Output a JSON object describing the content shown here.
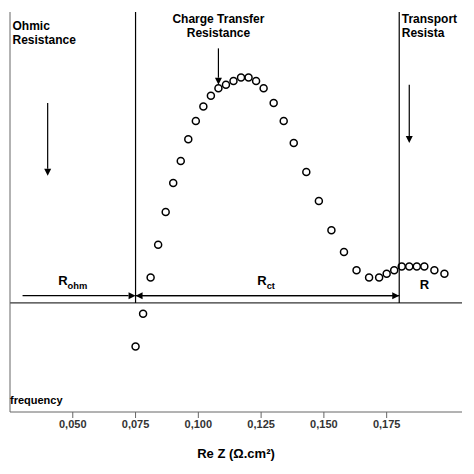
{
  "chart_data": {
    "type": "scatter",
    "xlabel": "Re Z (Ω.cm²)",
    "x": [
      0.075,
      0.078,
      0.081,
      0.084,
      0.087,
      0.09,
      0.093,
      0.096,
      0.099,
      0.102,
      0.105,
      0.108,
      0.111,
      0.114,
      0.117,
      0.12,
      0.123,
      0.126,
      0.13,
      0.134,
      0.138,
      0.143,
      0.148,
      0.153,
      0.158,
      0.163,
      0.168,
      0.172,
      0.175,
      0.178,
      0.181,
      0.184,
      0.187,
      0.19,
      0.194,
      0.198
    ],
    "values": [
      -0.012,
      -0.003,
      0.007,
      0.016,
      0.025,
      0.033,
      0.039,
      0.045,
      0.05,
      0.054,
      0.057,
      0.059,
      0.06,
      0.061,
      0.062,
      0.062,
      0.061,
      0.059,
      0.055,
      0.05,
      0.044,
      0.036,
      0.028,
      0.02,
      0.014,
      0.009,
      0.007,
      0.007,
      0.008,
      0.009,
      0.01,
      0.01,
      0.01,
      0.01,
      0.009,
      0.008
    ],
    "color": "#000000",
    "marker": "circle",
    "xlim": [
      0.025,
      0.205
    ],
    "ylim": [
      -0.03,
      0.08
    ],
    "xticks": [
      {
        "value": 0.05,
        "label": "0,050"
      },
      {
        "value": 0.075,
        "label": "0,075"
      },
      {
        "value": 0.1,
        "label": "0,100"
      },
      {
        "value": 0.125,
        "label": "0,125"
      },
      {
        "value": 0.15,
        "label": "0,150"
      },
      {
        "value": 0.175,
        "label": "0,175"
      }
    ],
    "tick_labels": "x",
    "grid": false,
    "vlines": [
      0.075,
      0.18
    ],
    "hlines": [
      0
    ],
    "annotations": [
      {
        "text": "R",
        "subscript": "ohm",
        "x": 0.05,
        "y": 0.003
      },
      {
        "text": "R",
        "subscript": "ct",
        "x": 0.127,
        "y": 0.003
      },
      {
        "text": "R",
        "x": 0.19,
        "y": 0.003
      },
      {
        "text": "Ohmic\nResistance",
        "x": 0.026,
        "y": 0.078
      },
      {
        "text": "Charge Transfer\nResistance",
        "x": 0.108,
        "y": 0.08
      },
      {
        "text": "Transport\nResista",
        "x": 0.181,
        "y": 0.08
      },
      {
        "text": "frequency",
        "x": 0.025,
        "y": -0.025
      }
    ],
    "arrows": [
      {
        "from": [
          0.03,
          0.002
        ],
        "to": [
          0.075,
          0.002
        ]
      },
      {
        "from": [
          0.18,
          0.002
        ],
        "to": [
          0.075,
          0.002
        ]
      },
      {
        "from": [
          0.075,
          0.002
        ],
        "to": [
          0.18,
          0.002
        ]
      },
      {
        "from": [
          0.04,
          0.055
        ],
        "to": [
          0.04,
          0.035
        ]
      },
      {
        "from": [
          0.108,
          0.07
        ],
        "to": [
          0.108,
          0.06
        ]
      },
      {
        "from": [
          0.184,
          0.06
        ],
        "to": [
          0.184,
          0.044
        ]
      }
    ]
  }
}
